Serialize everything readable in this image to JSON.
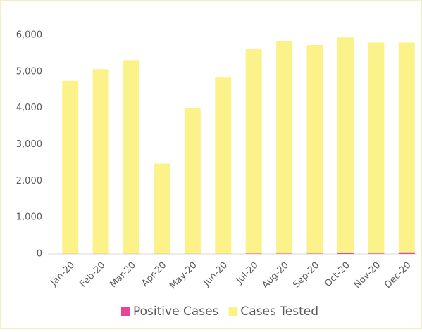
{
  "chart_data": {
    "type": "stacked_bar",
    "categories": [
      "Jan-20",
      "Feb-20",
      "Mar-20",
      "Apr-20",
      "May-20",
      "Jun-20",
      "Jul-20",
      "Aug-20",
      "Sep-20",
      "Oct-20",
      "Nov-20",
      "Dec-20"
    ],
    "series": [
      {
        "name": "Positive Cases",
        "color": "#e8449a",
        "values": [
          5,
          5,
          5,
          5,
          5,
          5,
          10,
          10,
          10,
          40,
          15,
          45
        ]
      },
      {
        "name": "Cases Tested",
        "color": "#fbf38a",
        "values": [
          4745,
          5065,
          5295,
          2475,
          4005,
          4835,
          5610,
          5820,
          5720,
          5900,
          5785,
          5755
        ]
      }
    ],
    "ylim": [
      0,
      6000
    ],
    "yticks": [
      0,
      {
        "value": 1000,
        "label": "1,000"
      },
      {
        "value": 2000,
        "label": "2,000"
      },
      {
        "value": 3000,
        "label": "3,000"
      },
      {
        "value": 4000,
        "label": "4,000"
      },
      {
        "value": 5000,
        "label": "5,000"
      },
      {
        "value": 6000,
        "label": "6,000"
      }
    ],
    "legend": "bottom"
  }
}
